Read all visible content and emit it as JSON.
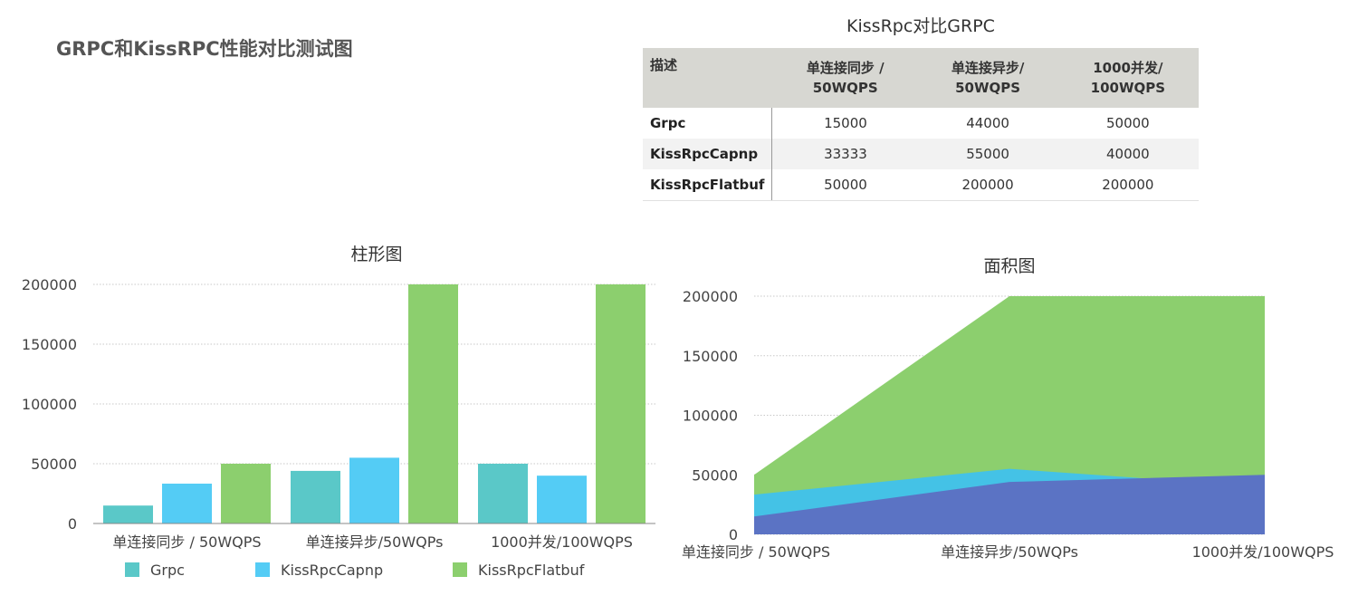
{
  "page_title": "GRPC和KissRPC性能对比测试图",
  "table": {
    "title": "KissRpc对比GRPC",
    "headers": [
      "描述",
      "单连接同步 /\n50WQPS",
      "单连接异步/\n50WQPS",
      "1000并发/\n100WQPS"
    ],
    "rows": [
      [
        "Grpc",
        "15000",
        "44000",
        "50000"
      ],
      [
        "KissRpcCapnp",
        "33333",
        "55000",
        "40000"
      ],
      [
        "KissRpcFlatbuf",
        "50000",
        "200000",
        "200000"
      ]
    ]
  },
  "chart_data": [
    {
      "type": "bar",
      "title": "柱形图",
      "categories": [
        "单连接同步 / 50WQPS",
        "单连接异步/50WQPs",
        "1000并发/100WQPS"
      ],
      "series": [
        {
          "name": "Grpc",
          "values": [
            15000,
            44000,
            50000
          ],
          "color": "#5ac8c8"
        },
        {
          "name": "KissRpcCapnp",
          "values": [
            33333,
            55000,
            40000
          ],
          "color": "#54ccf5"
        },
        {
          "name": "KissRpcFlatbuf",
          "values": [
            50000,
            200000,
            200000
          ],
          "color": "#8ccf6e"
        }
      ],
      "yticks": [
        "0",
        "50000",
        "100000",
        "150000",
        "200000"
      ],
      "ylim": [
        0,
        200000
      ],
      "grid": true,
      "legend": "bottom"
    },
    {
      "type": "area",
      "title": "面积图",
      "categories": [
        "单连接同步 / 50WQPS",
        "单连接异步/50WQPs",
        "1000并发/100WQPS"
      ],
      "series": [
        {
          "values": [
            50000,
            200000,
            200000
          ],
          "color": "#8ccf6e"
        },
        {
          "values": [
            33333,
            55000,
            40000
          ],
          "color": "#44c2e6"
        },
        {
          "values": [
            15000,
            44000,
            50000
          ],
          "color": "#5b73c4"
        }
      ],
      "yticks": [
        "0",
        "50000",
        "100000",
        "150000",
        "200000"
      ],
      "ylim": [
        0,
        200000
      ],
      "grid": true
    }
  ]
}
